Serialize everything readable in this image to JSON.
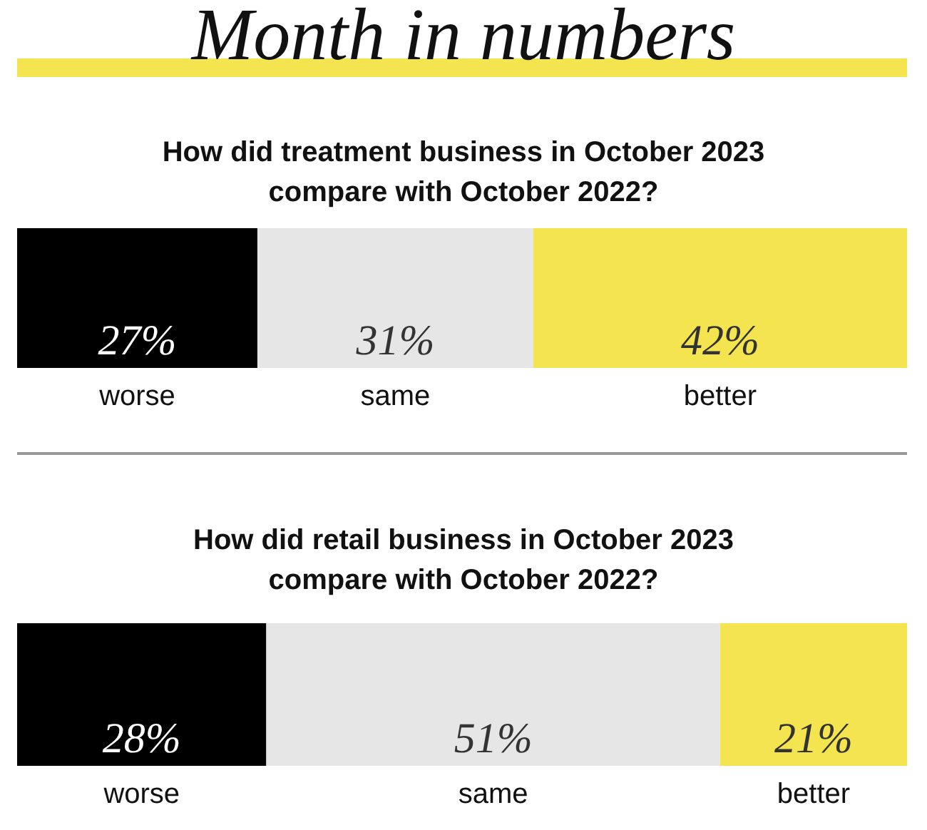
{
  "chart_data": [
    {
      "type": "bar",
      "orientation": "horizontal",
      "stacked": true,
      "title": "Month in numbers",
      "subtitle": "How did treatment business in October 2023\ncompare with October 2022?",
      "categories": [
        null
      ],
      "series": [
        {
          "name": "worse",
          "color": "#000000",
          "values": [
            27
          ],
          "value_labels": [
            "27%"
          ]
        },
        {
          "name": "same",
          "color": "#e6e6e6",
          "values": [
            31
          ],
          "value_labels": [
            "31%"
          ]
        },
        {
          "name": "better",
          "color": "#f3e450",
          "values": [
            42
          ],
          "value_labels": [
            "42%"
          ]
        }
      ]
    },
    {
      "type": "bar",
      "orientation": "horizontal",
      "stacked": true,
      "title": "How did retail business in October 2023\ncompare with October 2022?",
      "categories": [
        null
      ],
      "series": [
        {
          "name": "worse",
          "color": "#000000",
          "values": [
            28
          ],
          "value_labels": [
            "28%"
          ]
        },
        {
          "name": "same",
          "color": "#e6e6e6",
          "values": [
            51
          ],
          "value_labels": [
            "51%"
          ]
        },
        {
          "name": "better",
          "color": "#f3e450",
          "values": [
            21
          ],
          "value_labels": [
            "21%"
          ]
        }
      ]
    }
  ]
}
